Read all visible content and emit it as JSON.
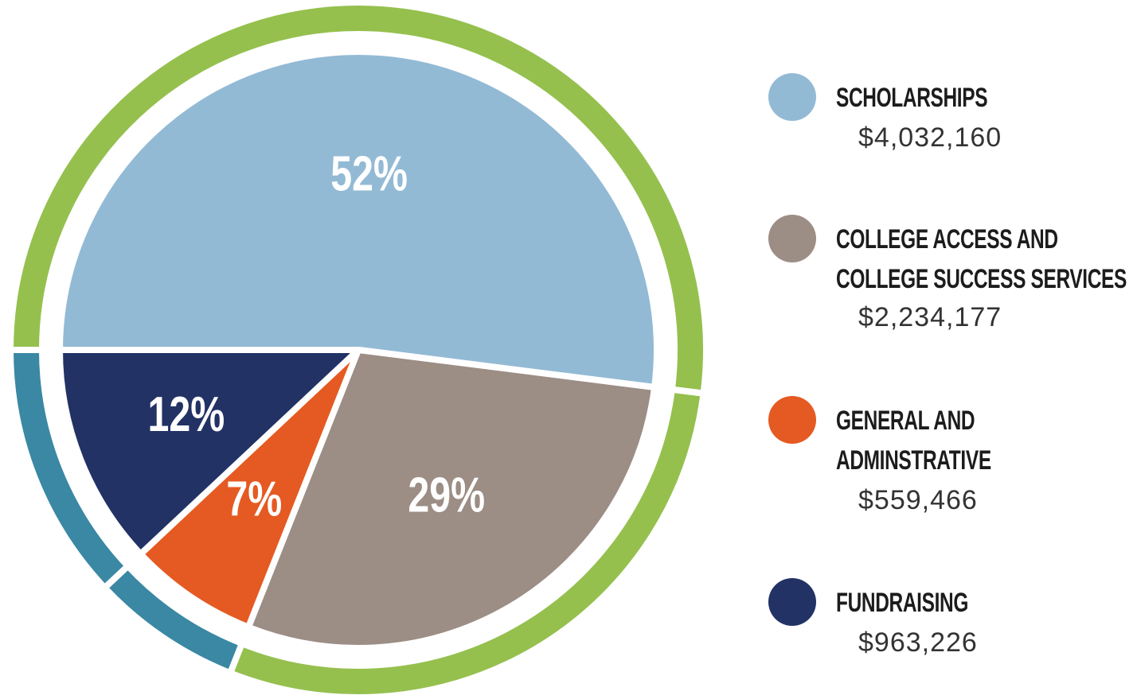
{
  "chart_data": {
    "type": "pie",
    "categories": [
      "SCHOLARSHIPS",
      "COLLEGE ACCESS AND\nCOLLEGE SUCCESS SERVICES",
      "GENERAL AND\nADMINSTRATIVE",
      "FUNDRAISING"
    ],
    "values": [
      52,
      29,
      7,
      12
    ],
    "value_labels": [
      "52%",
      "29%",
      "7%",
      "12%"
    ],
    "amount_labels": [
      "$4,032,160",
      "$2,234,177",
      "$559,466",
      "$963,226"
    ],
    "colors": [
      "#93bad5",
      "#9c8d85",
      "#e55a22",
      "#223265"
    ],
    "ring_colors": [
      "#95c04e",
      "#95c04e",
      "#3a88a3",
      "#3a88a3"
    ]
  }
}
